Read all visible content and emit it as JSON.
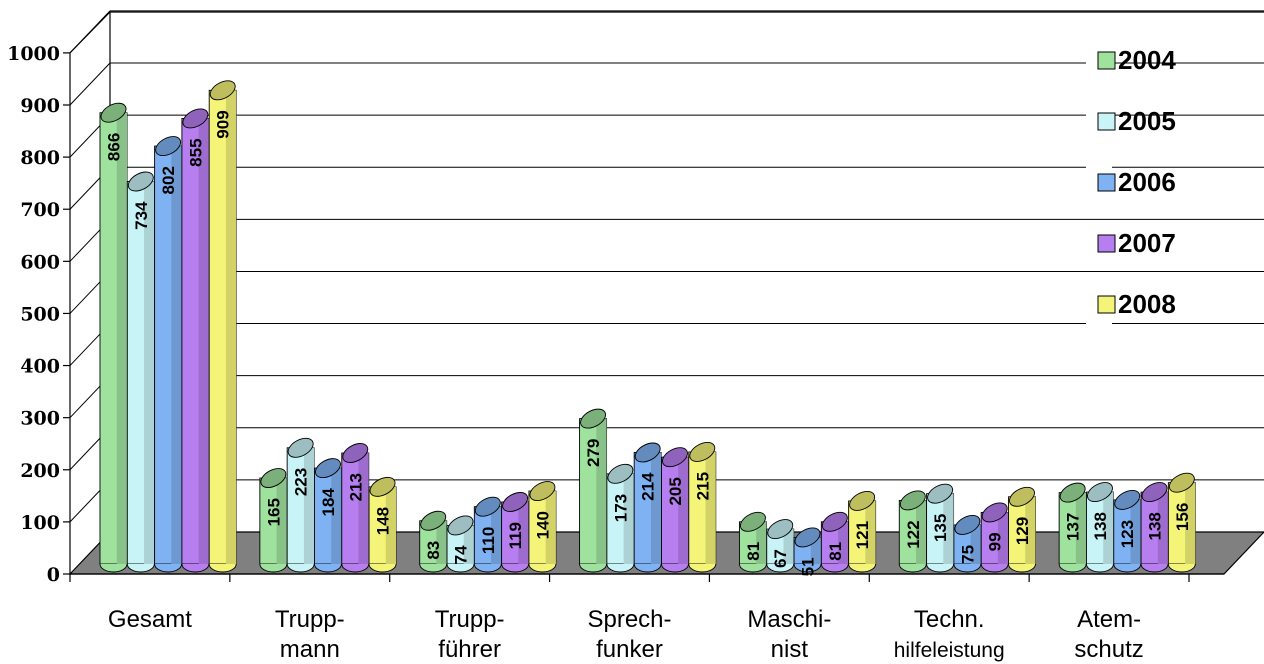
{
  "chart_data": {
    "type": "bar",
    "style": "3d-cylinder",
    "categories": [
      [
        "Gesamt"
      ],
      [
        "Trupp-",
        "mann"
      ],
      [
        "Trupp-",
        "führer"
      ],
      [
        "Sprech-",
        "funker"
      ],
      [
        "Maschi-",
        "nist"
      ],
      [
        "Techn.",
        "hilfeleistung"
      ],
      [
        "Atem-",
        "schutz"
      ]
    ],
    "series": [
      {
        "name": "2004",
        "color": "#9ee29e",
        "values": [
          866,
          165,
          83,
          279,
          81,
          122,
          137
        ]
      },
      {
        "name": "2005",
        "color": "#c8f4f8",
        "values": [
          734,
          223,
          74,
          173,
          67,
          135,
          138
        ]
      },
      {
        "name": "2006",
        "color": "#7fb2f2",
        "values": [
          802,
          184,
          110,
          214,
          51,
          75,
          123
        ]
      },
      {
        "name": "2007",
        "color": "#b77ef0",
        "values": [
          855,
          213,
          119,
          205,
          81,
          99,
          138
        ]
      },
      {
        "name": "2008",
        "color": "#f4f478",
        "values": [
          909,
          148,
          140,
          215,
          121,
          129,
          156
        ]
      }
    ],
    "yticks": [
      0,
      100,
      200,
      300,
      400,
      500,
      600,
      700,
      800,
      900,
      1000
    ],
    "ylim": [
      0,
      1000
    ],
    "grid": true,
    "legend": "right",
    "floor_color": "#808080"
  }
}
